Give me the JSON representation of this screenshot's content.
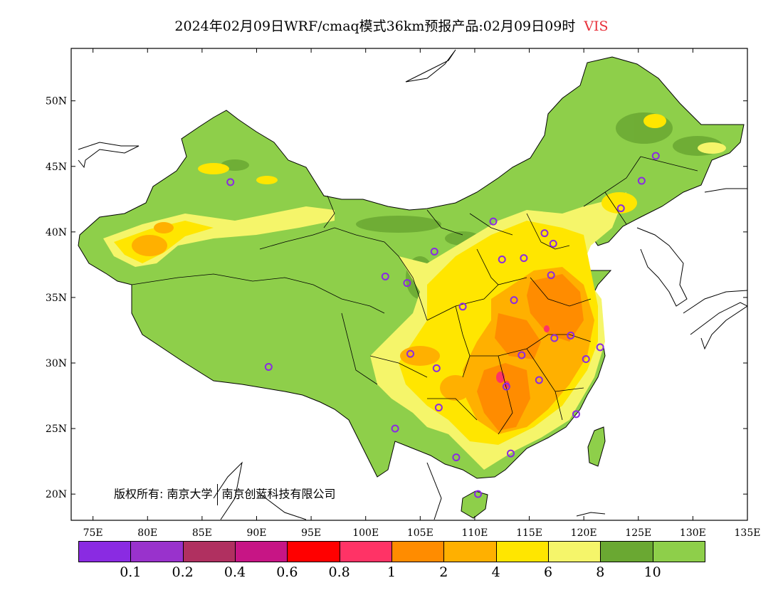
{
  "title": {
    "main": "2024年02月09日WRF/cmaq模式36km预报产品:02月09日09时",
    "variable": "VIS",
    "variable_color": "#e8303a"
  },
  "map": {
    "lon_ticks": [
      "75E",
      "80E",
      "85E",
      "90E",
      "95E",
      "100E",
      "105E",
      "110E",
      "115E",
      "120E",
      "125E",
      "130E",
      "135E"
    ],
    "lat_ticks": [
      "20N",
      "25N",
      "30N",
      "35N",
      "40N",
      "45N",
      "50N"
    ],
    "lon_range": [
      73,
      135
    ],
    "lat_range": [
      18,
      54
    ],
    "land_color": "#8ecf4a",
    "sea_color": "#ffffff",
    "stations": [
      {
        "lon": 87.6,
        "lat": 43.8
      },
      {
        "lon": 91.1,
        "lat": 29.7
      },
      {
        "lon": 101.8,
        "lat": 36.6
      },
      {
        "lon": 103.8,
        "lat": 36.1
      },
      {
        "lon": 106.3,
        "lat": 38.5
      },
      {
        "lon": 108.9,
        "lat": 34.3
      },
      {
        "lon": 111.7,
        "lat": 40.8
      },
      {
        "lon": 112.5,
        "lat": 37.9
      },
      {
        "lon": 114.5,
        "lat": 38.0
      },
      {
        "lon": 116.4,
        "lat": 39.9
      },
      {
        "lon": 117.2,
        "lat": 39.1
      },
      {
        "lon": 117.0,
        "lat": 36.7
      },
      {
        "lon": 113.6,
        "lat": 34.8
      },
      {
        "lon": 117.3,
        "lat": 31.9
      },
      {
        "lon": 118.8,
        "lat": 32.1
      },
      {
        "lon": 121.5,
        "lat": 31.2
      },
      {
        "lon": 120.2,
        "lat": 30.3
      },
      {
        "lon": 114.3,
        "lat": 30.6
      },
      {
        "lon": 112.9,
        "lat": 28.2
      },
      {
        "lon": 115.9,
        "lat": 28.7
      },
      {
        "lon": 119.3,
        "lat": 26.1
      },
      {
        "lon": 113.3,
        "lat": 23.1
      },
      {
        "lon": 108.3,
        "lat": 22.8
      },
      {
        "lon": 110.3,
        "lat": 20.0
      },
      {
        "lon": 102.7,
        "lat": 25.0
      },
      {
        "lon": 106.7,
        "lat": 26.6
      },
      {
        "lon": 106.5,
        "lat": 29.6
      },
      {
        "lon": 104.1,
        "lat": 30.7
      },
      {
        "lon": 123.4,
        "lat": 41.8
      },
      {
        "lon": 125.3,
        "lat": 43.9
      },
      {
        "lon": 126.6,
        "lat": 45.8
      }
    ]
  },
  "copyright": {
    "prefix": "版权所有:",
    "org1": "南京大学",
    "org2": "南京创蓝科技有限公司"
  },
  "legend": {
    "colors": [
      "#8a2be2",
      "#9932cc",
      "#b03060",
      "#c71585",
      "#ff0000",
      "#ff3366",
      "#ff8c00",
      "#ffb000",
      "#ffe600",
      "#f5f56a",
      "#6aa832",
      "#8ecf4a"
    ],
    "labels": [
      "0.1",
      "0.2",
      "0.4",
      "0.6",
      "0.8",
      "1",
      "2",
      "4",
      "6",
      "8",
      "10"
    ]
  }
}
